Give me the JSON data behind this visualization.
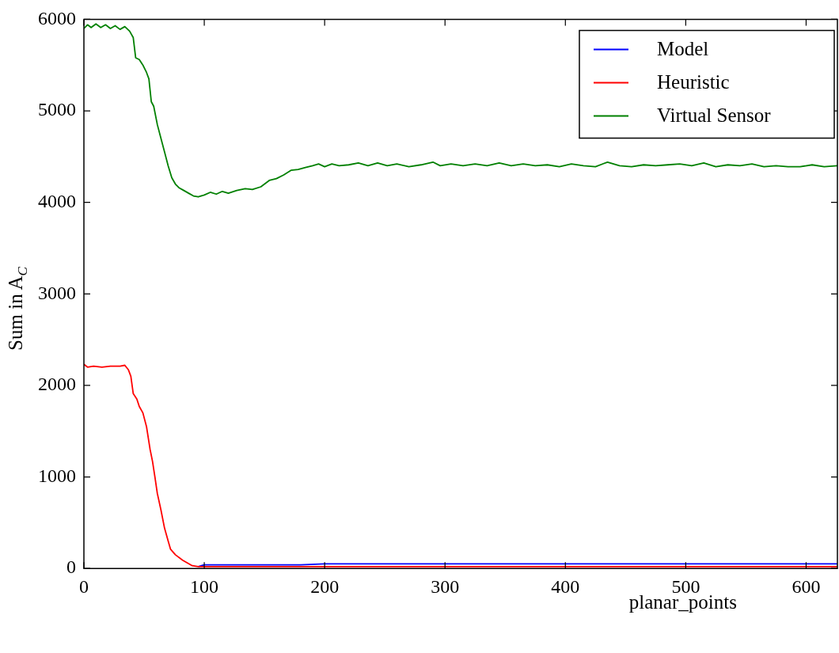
{
  "chart_data": {
    "type": "line",
    "xlabel": "planar_points",
    "ylabel": "Sum in A$_{C}$",
    "xlim": [
      0,
      626
    ],
    "ylim": [
      0,
      6000
    ],
    "xticks": [
      0,
      100,
      200,
      300,
      400,
      500,
      600
    ],
    "yticks": [
      0,
      1000,
      2000,
      3000,
      4000,
      5000,
      6000
    ],
    "grid": false,
    "legend": "top right",
    "marker": "none",
    "line_style": "solid",
    "series": [
      {
        "name": "Model",
        "color": "#0000ff",
        "x": [
          95,
          100,
          130,
          180,
          200,
          300,
          400,
          500,
          626
        ],
        "values": [
          20,
          40,
          40,
          40,
          50,
          50,
          50,
          50,
          50
        ]
      },
      {
        "name": "Heuristic",
        "color": "#ff0000",
        "x": [
          0,
          3,
          8,
          15,
          22,
          30,
          34,
          37,
          39,
          41,
          44,
          46,
          49,
          52,
          55,
          57,
          59,
          61,
          64,
          67,
          70,
          72,
          76,
          82,
          86,
          90,
          95,
          100,
          200,
          300,
          400,
          500,
          626
        ],
        "values": [
          2230,
          2200,
          2210,
          2200,
          2210,
          2210,
          2220,
          2170,
          2100,
          1910,
          1850,
          1770,
          1700,
          1550,
          1300,
          1170,
          1000,
          820,
          640,
          440,
          300,
          210,
          150,
          90,
          60,
          30,
          20,
          20,
          20,
          20,
          20,
          20,
          20
        ]
      },
      {
        "name": "Virtual Sensor",
        "color": "#008000",
        "x": [
          0,
          3,
          6,
          10,
          14,
          18,
          22,
          26,
          30,
          34,
          38,
          41,
          43,
          46,
          49,
          52,
          54,
          56,
          58,
          61,
          64,
          67,
          70,
          73,
          76,
          79,
          83,
          87,
          91,
          95,
          100,
          105,
          110,
          115,
          120,
          127,
          134,
          140,
          147,
          154,
          160,
          166,
          172,
          178,
          184,
          190,
          195,
          200,
          206,
          212,
          220,
          228,
          236,
          244,
          252,
          260,
          270,
          280,
          290,
          296,
          305,
          315,
          325,
          335,
          345,
          355,
          365,
          375,
          385,
          395,
          405,
          415,
          425,
          435,
          445,
          455,
          465,
          475,
          485,
          495,
          505,
          515,
          525,
          535,
          545,
          555,
          565,
          575,
          585,
          595,
          605,
          615,
          626
        ],
        "values": [
          5900,
          5940,
          5910,
          5950,
          5910,
          5940,
          5900,
          5930,
          5890,
          5920,
          5870,
          5800,
          5580,
          5560,
          5500,
          5420,
          5350,
          5100,
          5050,
          4850,
          4700,
          4550,
          4400,
          4270,
          4200,
          4160,
          4130,
          4100,
          4070,
          4060,
          4080,
          4110,
          4090,
          4120,
          4100,
          4130,
          4150,
          4140,
          4170,
          4240,
          4260,
          4300,
          4350,
          4360,
          4380,
          4400,
          4420,
          4390,
          4420,
          4400,
          4410,
          4430,
          4400,
          4430,
          4400,
          4420,
          4390,
          4410,
          4440,
          4400,
          4420,
          4400,
          4420,
          4400,
          4430,
          4400,
          4420,
          4400,
          4410,
          4390,
          4420,
          4400,
          4390,
          4440,
          4400,
          4390,
          4410,
          4400,
          4410,
          4420,
          4400,
          4430,
          4390,
          4410,
          4400,
          4420,
          4390,
          4400,
          4390,
          4390,
          4410,
          4390,
          4400
        ]
      }
    ]
  }
}
